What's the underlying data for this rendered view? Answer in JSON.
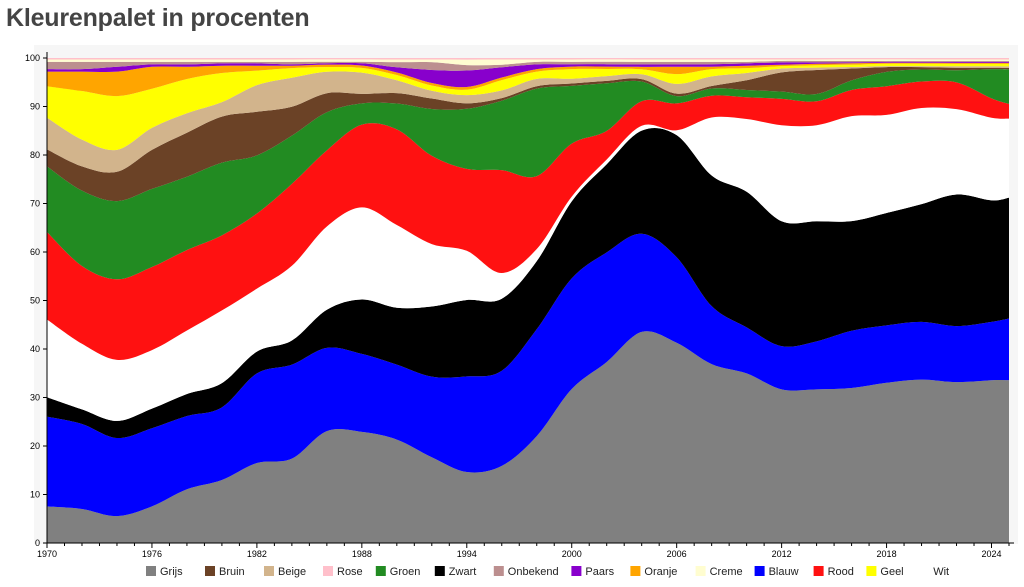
{
  "page": {
    "title": "Kleurenpalet in procenten"
  },
  "chart_data": {
    "type": "area",
    "title": "Kleurenpalet in procenten",
    "xlabel": "",
    "ylabel": "",
    "stacked": true,
    "xlim": [
      1970,
      2025
    ],
    "ylim": [
      0,
      100
    ],
    "x_ticks": [
      1970,
      1976,
      1982,
      1988,
      1994,
      2000,
      2006,
      2012,
      2018,
      2024
    ],
    "y_ticks": [
      0,
      10,
      20,
      30,
      40,
      50,
      60,
      70,
      80,
      90,
      100
    ],
    "grid": false,
    "legend_position": "bottom",
    "x": [
      1970,
      1972,
      1974,
      1976,
      1978,
      1980,
      1982,
      1984,
      1986,
      1988,
      1990,
      1992,
      1994,
      1996,
      1998,
      2000,
      2002,
      2004,
      2006,
      2008,
      2010,
      2012,
      2014,
      2016,
      2018,
      2020,
      2022,
      2024,
      2025
    ],
    "series": [
      {
        "name": "Grijs",
        "color": "#808080",
        "values": [
          7.5,
          7.0,
          5.5,
          7.5,
          11.0,
          13.0,
          16.5,
          17.5,
          23.5,
          23.5,
          20.0,
          16.5,
          13.0,
          15.0,
          22.0,
          32.0,
          38.0,
          43.0,
          41.0,
          37.0,
          35.0,
          32.0,
          32.0,
          32.5,
          33.5,
          34.0,
          33.0,
          33.5,
          33.0
        ]
      },
      {
        "name": "Blauw",
        "color": "#0000ff",
        "values": [
          18.5,
          17.5,
          16.0,
          16.0,
          15.0,
          15.0,
          18.5,
          19.5,
          17.5,
          16.5,
          14.5,
          15.5,
          17.5,
          18.5,
          22.0,
          23.0,
          23.0,
          20.0,
          17.5,
          12.0,
          9.5,
          9.0,
          10.0,
          12.0,
          12.0,
          12.0,
          11.5,
          12.0,
          12.5
        ]
      },
      {
        "name": "Zwart",
        "color": "#000000",
        "values": [
          4.0,
          3.0,
          3.5,
          4.0,
          4.5,
          5.0,
          4.5,
          5.0,
          8.0,
          11.5,
          11.0,
          13.5,
          14.0,
          14.0,
          14.0,
          16.0,
          18.5,
          21.0,
          25.0,
          27.0,
          28.0,
          26.0,
          25.0,
          23.0,
          23.5,
          24.5,
          27.0,
          25.0,
          24.5
        ]
      },
      {
        "name": "Wit",
        "color": "#ffffff",
        "values": [
          16.0,
          13.5,
          12.5,
          12.0,
          13.0,
          15.0,
          13.0,
          15.5,
          17.5,
          19.5,
          16.0,
          12.0,
          9.0,
          5.0,
          2.5,
          1.0,
          1.0,
          1.0,
          1.0,
          12.0,
          15.0,
          20.0,
          20.0,
          22.0,
          20.5,
          20.0,
          17.5,
          17.0,
          16.0
        ]
      },
      {
        "name": "Rood",
        "color": "#ff1111",
        "values": [
          18.0,
          16.0,
          16.5,
          17.0,
          16.5,
          15.5,
          15.5,
          17.0,
          16.0,
          17.5,
          18.5,
          17.0,
          15.0,
          20.0,
          15.0,
          11.0,
          6.0,
          5.0,
          5.5,
          4.5,
          4.5,
          5.5,
          5.0,
          5.5,
          6.0,
          5.5,
          5.5,
          4.0,
          3.0
        ]
      },
      {
        "name": "Groen",
        "color": "#228b22",
        "values": [
          13.5,
          15.5,
          16.0,
          16.0,
          15.0,
          15.0,
          12.0,
          10.0,
          8.0,
          4.5,
          5.0,
          9.0,
          11.0,
          13.5,
          18.0,
          12.0,
          10.0,
          4.0,
          1.5,
          1.5,
          1.5,
          1.5,
          1.5,
          2.0,
          3.0,
          2.5,
          2.5,
          6.0,
          7.0
        ]
      },
      {
        "name": "Bruin",
        "color": "#6b4226",
        "values": [
          3.5,
          5.0,
          6.0,
          8.0,
          9.0,
          9.5,
          9.0,
          6.0,
          4.0,
          2.0,
          2.0,
          2.0,
          1.0,
          0.5,
          0.5,
          0.5,
          0.5,
          0.5,
          0.5,
          0.5,
          2.0,
          4.0,
          5.0,
          2.5,
          1.0,
          0.5,
          0.5,
          0.3,
          0.3
        ]
      },
      {
        "name": "Beige",
        "color": "#d2b48c",
        "values": [
          6.5,
          5.5,
          4.5,
          4.5,
          4.0,
          3.0,
          5.5,
          6.0,
          4.5,
          4.5,
          2.5,
          1.5,
          1.5,
          1.5,
          1.5,
          1.0,
          1.0,
          1.0,
          2.0,
          2.0,
          1.5,
          0.8,
          0.5,
          0.3,
          0.2,
          0.2,
          0.3,
          0.3,
          0.3
        ]
      },
      {
        "name": "Geel",
        "color": "#ffff00",
        "values": [
          6.5,
          10.0,
          11.0,
          8.0,
          7.0,
          6.0,
          3.0,
          2.0,
          1.0,
          1.0,
          1.0,
          1.0,
          1.0,
          2.0,
          1.5,
          2.0,
          1.5,
          1.0,
          2.0,
          1.5,
          1.0,
          0.5,
          0.5,
          0.5,
          0.5,
          0.5,
          0.5,
          0.5,
          0.5
        ]
      },
      {
        "name": "Oranje",
        "color": "#ffa500",
        "values": [
          3.0,
          4.0,
          5.0,
          4.5,
          2.5,
          1.5,
          1.0,
          0.5,
          0.5,
          0.5,
          0.5,
          0.5,
          0.5,
          0.5,
          0.5,
          0.5,
          0.5,
          0.5,
          1.5,
          0.5,
          0.5,
          0.3,
          0.3,
          0.3,
          0.2,
          0.2,
          0.2,
          0.2,
          0.2
        ]
      },
      {
        "name": "Paars",
        "color": "#8800cc",
        "values": [
          0.5,
          0.5,
          1.0,
          0.5,
          0.5,
          0.5,
          0.5,
          0.3,
          0.3,
          0.5,
          1.0,
          2.5,
          3.0,
          2.0,
          1.0,
          0.5,
          0.5,
          0.5,
          0.5,
          0.5,
          0.5,
          0.5,
          0.3,
          0.2,
          0.2,
          0.2,
          0.2,
          0.2,
          0.2
        ]
      },
      {
        "name": "Onbekend",
        "color": "#bc8f8f",
        "values": [
          1.5,
          1.5,
          1.0,
          0.5,
          0.5,
          0.3,
          0.3,
          0.5,
          0.3,
          0.3,
          1.0,
          1.5,
          1.0,
          0.5,
          0.5,
          0.5,
          0.5,
          0.5,
          0.5,
          0.5,
          0.3,
          0.3,
          0.3,
          0.3,
          0.2,
          0.2,
          0.2,
          0.2,
          0.2
        ]
      },
      {
        "name": "Creme",
        "color": "#fffdd0",
        "values": [
          0.5,
          0.5,
          0.5,
          0.5,
          0.5,
          0.5,
          0.5,
          0.5,
          0.5,
          0.5,
          0.5,
          0.5,
          1.0,
          1.0,
          0.5,
          0.5,
          0.5,
          0.5,
          0.5,
          0.5,
          0.5,
          0.3,
          0.3,
          0.3,
          0.3,
          0.3,
          0.3,
          0.3,
          0.3
        ]
      },
      {
        "name": "Rose",
        "color": "#ffc0cb",
        "values": [
          0.3,
          0.3,
          0.3,
          0.3,
          0.3,
          0.3,
          0.3,
          0.3,
          0.3,
          0.3,
          0.3,
          0.3,
          0.3,
          0.3,
          0.3,
          0.3,
          0.3,
          0.3,
          0.3,
          0.3,
          0.3,
          0.3,
          0.3,
          0.3,
          0.3,
          0.3,
          0.3,
          0.3,
          0.3
        ]
      }
    ],
    "legend": [
      {
        "name": "Grijs",
        "color": "#808080"
      },
      {
        "name": "Bruin",
        "color": "#6b4226"
      },
      {
        "name": "Beige",
        "color": "#d2b48c"
      },
      {
        "name": "Rose",
        "color": "#ffc0cb"
      },
      {
        "name": "Groen",
        "color": "#228b22"
      },
      {
        "name": "Zwart",
        "color": "#000000"
      },
      {
        "name": "Onbekend",
        "color": "#bc8f8f"
      },
      {
        "name": "Paars",
        "color": "#8800cc"
      },
      {
        "name": "Oranje",
        "color": "#ffa500"
      },
      {
        "name": "Creme",
        "color": "#fffdd0"
      },
      {
        "name": "Blauw",
        "color": "#0000ff"
      },
      {
        "name": "Rood",
        "color": "#ff1111"
      },
      {
        "name": "Geel",
        "color": "#ffff00"
      },
      {
        "name": "Wit",
        "color": "#ffffff"
      }
    ]
  }
}
